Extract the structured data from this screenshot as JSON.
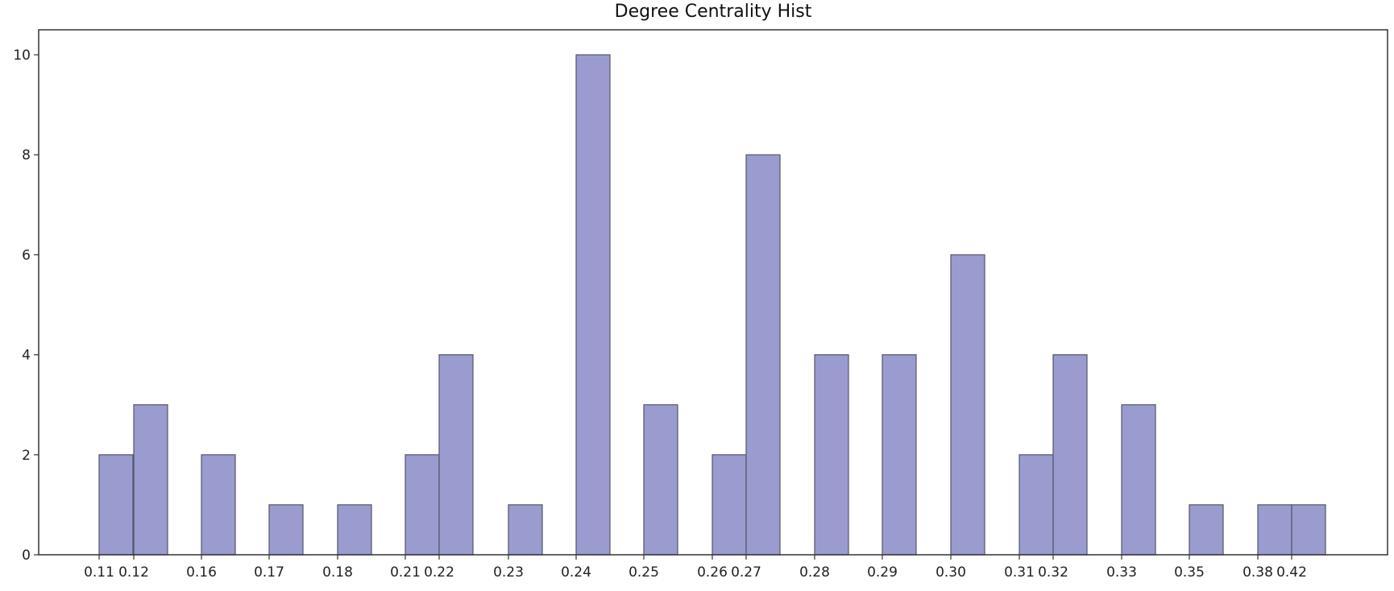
{
  "chart_data": {
    "type": "bar",
    "title": "Degree Centrality Hist",
    "xlabel": "",
    "ylabel": "",
    "x_tick_labels": [
      "0.11",
      "0.12",
      "0.16",
      "0.17",
      "0.18",
      "0.21",
      "0.22",
      "0.23",
      "0.24",
      "0.25",
      "0.26",
      "0.27",
      "0.28",
      "0.29",
      "0.30",
      "0.31",
      "0.32",
      "0.33",
      "0.35",
      "0.38",
      "0.42"
    ],
    "y_ticks": [
      0,
      2,
      4,
      6,
      8,
      10
    ],
    "ylim": [
      0,
      10.5
    ],
    "bars": [
      {
        "label": "0.11",
        "value": 2
      },
      {
        "label": "0.12",
        "value": 3
      },
      {
        "label": "0.16",
        "value": 2
      },
      {
        "label": "0.17",
        "value": 1
      },
      {
        "label": "0.18",
        "value": 1
      },
      {
        "label": "0.21",
        "value": 2
      },
      {
        "label": "0.22",
        "value": 4
      },
      {
        "label": "0.23",
        "value": 1
      },
      {
        "label": "0.24",
        "value": 10
      },
      {
        "label": "0.25",
        "value": 3
      },
      {
        "label": "0.26",
        "value": 2
      },
      {
        "label": "0.27",
        "value": 8
      },
      {
        "label": "0.28",
        "value": 4
      },
      {
        "label": "0.29",
        "value": 4
      },
      {
        "label": "0.30",
        "value": 6
      },
      {
        "label": "0.31",
        "value": 2
      },
      {
        "label": "0.32",
        "value": 4
      },
      {
        "label": "0.33",
        "value": 3
      },
      {
        "label": "0.35",
        "value": 1
      },
      {
        "label": "0.38",
        "value": 1
      },
      {
        "label": "0.42",
        "value": 1
      }
    ],
    "bar_color": "#9a9bcf",
    "bar_edge_color": "#555566",
    "grid": false
  }
}
